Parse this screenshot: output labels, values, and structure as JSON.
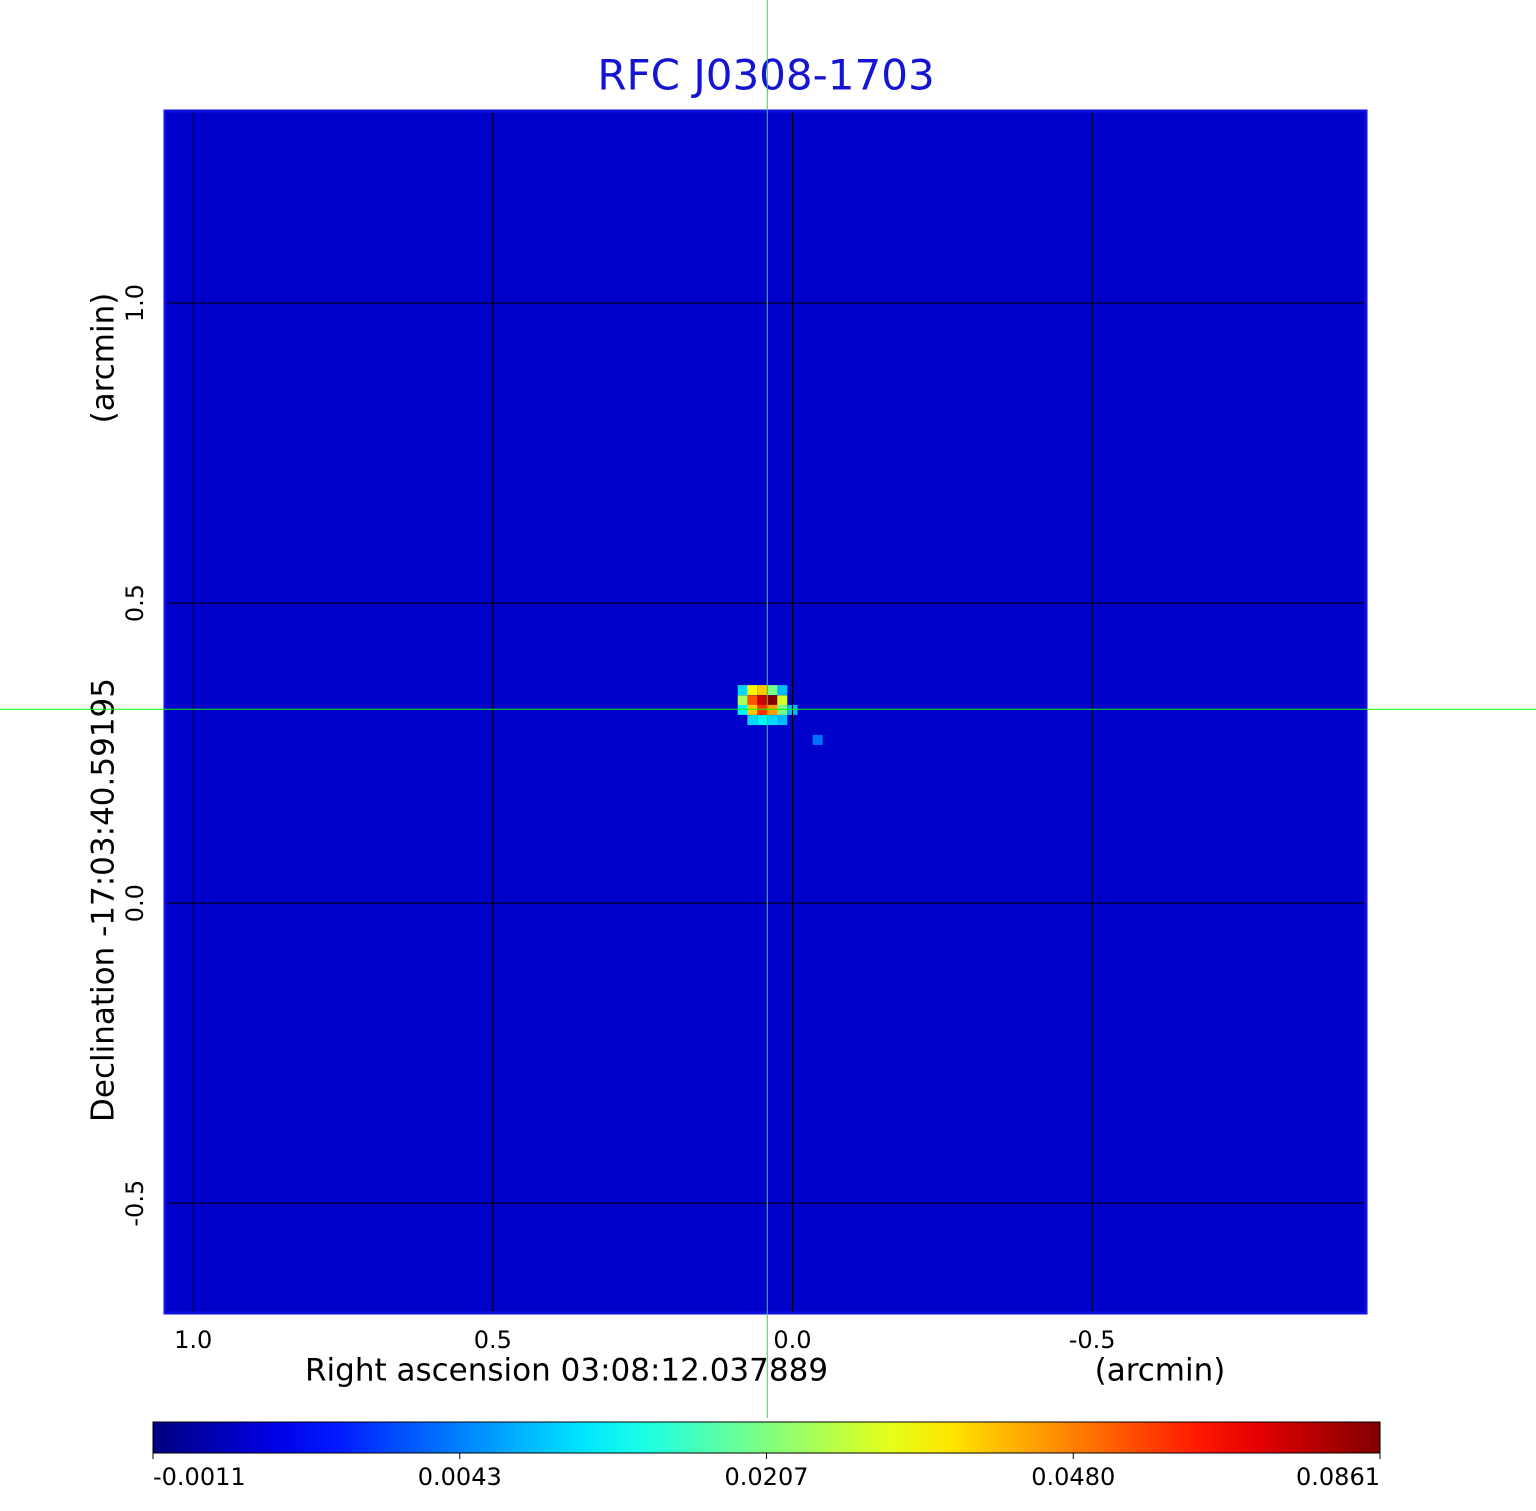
{
  "chart_data": {
    "type": "heatmap",
    "title": "RFC J0308-1703",
    "x_label": "Right ascension  03:08:12.037889",
    "x_unit": "(arcmin)",
    "y_label": "Declination  -17:03:40.59195",
    "y_unit": "(arcmin)",
    "xlim": [
      1.047,
      -0.957
    ],
    "ylim": [
      -0.683,
      1.32
    ],
    "xticks": [
      {
        "value": 1.0,
        "label": "1.0"
      },
      0.5,
      {
        "value": 0.0,
        "label": "0.0"
      },
      -0.5
    ],
    "yticks": [
      {
        "value": 1.0,
        "label": "1.0"
      },
      0.5,
      {
        "value": 0.0,
        "label": "0.0"
      },
      -0.5
    ],
    "grid": true,
    "colormap": "jet",
    "background_value": 0.0005,
    "colorbar_ticks": [
      -0.0011,
      0.0043,
      0.0207,
      {
        "value": 0.048,
        "label": "0.0480"
      },
      0.0861
    ],
    "marker": {
      "x": 0.042,
      "y": 0.323,
      "color": "#00ff00"
    },
    "pixel_size": 0.0167,
    "source": {
      "x": [
        0.083,
        0.067,
        0.05,
        0.033,
        0.017,
        0.083,
        0.067,
        0.05,
        0.033,
        0.017,
        0.083,
        0.067,
        0.05,
        0.033,
        0.017,
        0.0,
        0.067,
        0.05,
        0.033,
        0.017,
        -0.042
      ],
      "y": [
        0.355,
        0.355,
        0.355,
        0.355,
        0.355,
        0.338,
        0.338,
        0.338,
        0.338,
        0.338,
        0.322,
        0.322,
        0.322,
        0.322,
        0.322,
        0.322,
        0.305,
        0.305,
        0.305,
        0.305,
        0.272
      ],
      "values": [
        0.01,
        0.035,
        0.04,
        0.02,
        0.008,
        0.025,
        0.055,
        0.075,
        0.0861,
        0.03,
        0.012,
        0.04,
        0.06,
        0.045,
        0.02,
        0.008,
        0.01,
        0.012,
        0.01,
        0.008,
        0.004
      ]
    }
  }
}
